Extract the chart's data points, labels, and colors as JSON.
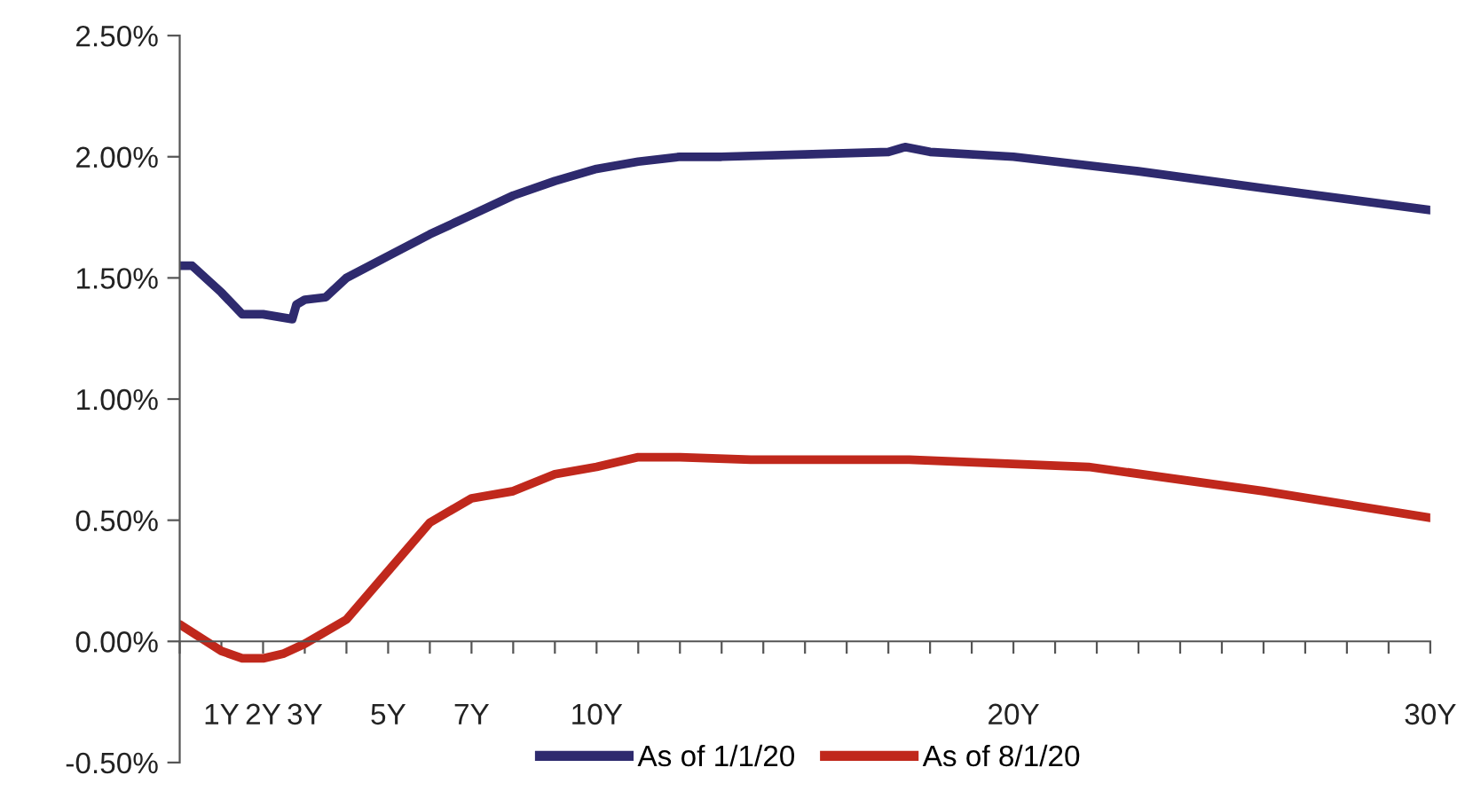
{
  "chart_data": {
    "type": "line",
    "xlim": [
      0,
      30
    ],
    "xticks": [
      {
        "value": 0,
        "label": null
      },
      {
        "value": 1,
        "label": "1Y"
      },
      {
        "value": 2,
        "label": "2Y"
      },
      {
        "value": 3,
        "label": "3Y"
      },
      {
        "value": 4,
        "label": null
      },
      {
        "value": 5,
        "label": "5Y"
      },
      {
        "value": 6,
        "label": null
      },
      {
        "value": 7,
        "label": "7Y"
      },
      {
        "value": 8,
        "label": null
      },
      {
        "value": 9,
        "label": null
      },
      {
        "value": 10,
        "label": "10Y"
      },
      {
        "value": 11,
        "label": null
      },
      {
        "value": 12,
        "label": null
      },
      {
        "value": 13,
        "label": null
      },
      {
        "value": 14,
        "label": null
      },
      {
        "value": 15,
        "label": null
      },
      {
        "value": 16,
        "label": null
      },
      {
        "value": 17,
        "label": null
      },
      {
        "value": 18,
        "label": null
      },
      {
        "value": 19,
        "label": null
      },
      {
        "value": 20,
        "label": "20Y"
      },
      {
        "value": 21,
        "label": null
      },
      {
        "value": 22,
        "label": null
      },
      {
        "value": 23,
        "label": null
      },
      {
        "value": 24,
        "label": null
      },
      {
        "value": 25,
        "label": null
      },
      {
        "value": 26,
        "label": null
      },
      {
        "value": 27,
        "label": null
      },
      {
        "value": 28,
        "label": null
      },
      {
        "value": 29,
        "label": null
      },
      {
        "value": 30,
        "label": "30Y"
      }
    ],
    "ylim": [
      -0.5,
      2.5
    ],
    "yticks": [
      {
        "value": -0.5,
        "label": "-0.50%"
      },
      {
        "value": 0,
        "label": "0.00%"
      },
      {
        "value": 0.5,
        "label": "0.50%"
      },
      {
        "value": 1,
        "label": "1.00%"
      },
      {
        "value": 1.5,
        "label": "1.50%"
      },
      {
        "value": 2,
        "label": "2.00%"
      },
      {
        "value": 2.5,
        "label": "2.50%"
      }
    ],
    "grid": false,
    "legend": "bottom",
    "marker": "none",
    "line_style": "solid",
    "series": [
      {
        "name": "As of 1/1/20",
        "color": "#2e2a6e",
        "x": [
          0,
          0.3,
          1,
          1.5,
          2,
          2.7,
          2.8,
          3,
          3.5,
          4,
          5,
          6,
          7,
          8,
          9,
          10,
          11,
          12,
          13,
          15,
          17,
          17.4,
          18,
          20,
          23,
          26,
          30
        ],
        "values": [
          1.55,
          1.55,
          1.44,
          1.35,
          1.35,
          1.33,
          1.39,
          1.41,
          1.42,
          1.5,
          1.59,
          1.68,
          1.76,
          1.84,
          1.9,
          1.95,
          1.98,
          2.0,
          2.0,
          2.01,
          2.02,
          2.04,
          2.02,
          2.0,
          1.94,
          1.87,
          1.78
        ]
      },
      {
        "name": "As of 8/1/20",
        "color": "#c0281c",
        "x": [
          0,
          1,
          1.5,
          2,
          2.5,
          3,
          4,
          5,
          6,
          7,
          8,
          9,
          10,
          11,
          12,
          13.7,
          17.5,
          21.8,
          26,
          30
        ],
        "values": [
          0.07,
          -0.04,
          -0.07,
          -0.07,
          -0.05,
          -0.01,
          0.09,
          0.29,
          0.49,
          0.59,
          0.62,
          0.69,
          0.72,
          0.76,
          0.76,
          0.75,
          0.75,
          0.72,
          0.62,
          0.51
        ]
      }
    ]
  }
}
